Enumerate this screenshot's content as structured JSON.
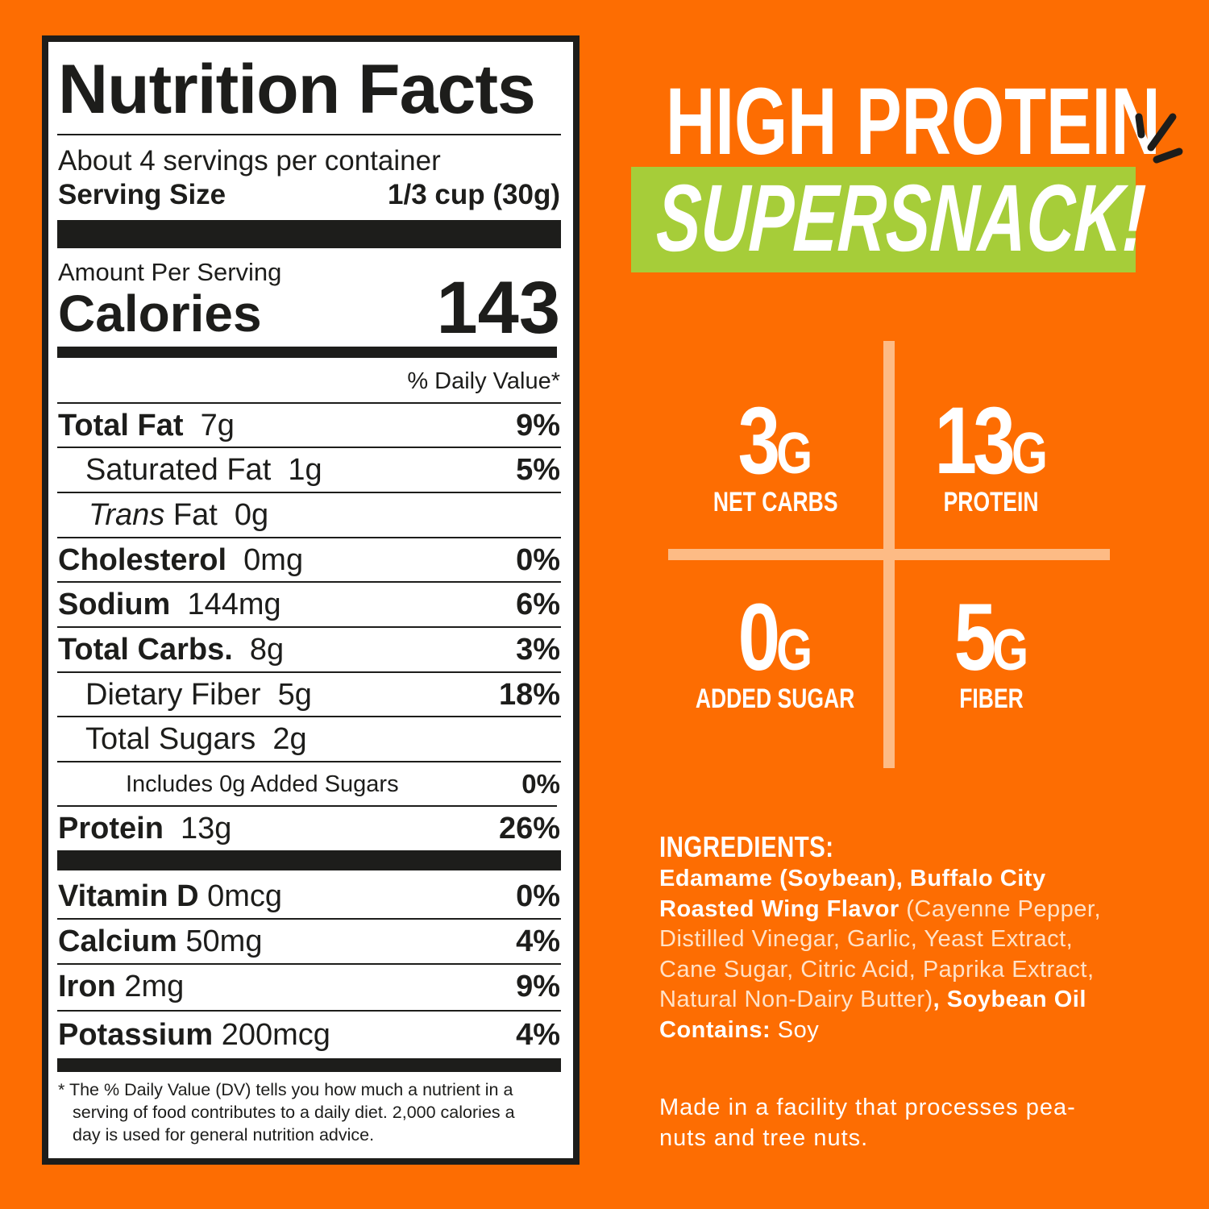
{
  "label": {
    "title": "Nutrition Facts",
    "servings": "About 4 servings per container",
    "serving_size_label": "Serving Size",
    "serving_size_value": "1/3 cup (30g)",
    "amount_per_serving": "Amount Per Serving",
    "calories_label": "Calories",
    "calories_value": "143",
    "daily_value_header": "% Daily Value*",
    "nutrients": [
      {
        "name": "Total Fat",
        "amount": "7g",
        "dv": "9%"
      },
      {
        "name": "Saturated Fat",
        "amount": "1g",
        "dv": "5%"
      },
      {
        "name": "Trans",
        "name_suffix": "Fat",
        "amount": "0g",
        "dv": ""
      },
      {
        "name": "Cholesterol",
        "amount": "0mg",
        "dv": "0%"
      },
      {
        "name": "Sodium",
        "amount": "144mg",
        "dv": "6%"
      },
      {
        "name": "Total Carbs.",
        "amount": "8g",
        "dv": "3%"
      },
      {
        "name": "Dietary Fiber",
        "amount": "5g",
        "dv": "18%"
      },
      {
        "name": "Total Sugars",
        "amount": "2g",
        "dv": ""
      },
      {
        "name": "Includes 0g Added Sugars",
        "amount": "",
        "dv": "0%"
      },
      {
        "name": "Protein",
        "amount": "13g",
        "dv": "26%"
      }
    ],
    "vitamins": [
      {
        "name": "Vitamin D",
        "amount": "0mcg",
        "dv": "0%"
      },
      {
        "name": "Calcium",
        "amount": "50mg",
        "dv": "4%"
      },
      {
        "name": "Iron",
        "amount": "2mg",
        "dv": "9%"
      },
      {
        "name": "Potassium",
        "amount": "200mcg",
        "dv": "4%"
      }
    ],
    "footnote_1": "* The % Daily Value (DV) tells you how much a nutrient in a",
    "footnote_2": "serving of food contributes to a daily diet. 2,000 calories a",
    "footnote_3": "day is used for general nutrition advice."
  },
  "headline": {
    "line1": "HIGH PROTEIN",
    "line2": "SUPERSNACK!"
  },
  "highlights": [
    {
      "value": "3",
      "unit": "G",
      "label": "NET CARBS"
    },
    {
      "value": "13",
      "unit": "G",
      "label": "PROTEIN"
    },
    {
      "value": "0",
      "unit": "G",
      "label": "ADDED SUGAR"
    },
    {
      "value": "5",
      "unit": "G",
      "label": "FIBER"
    }
  ],
  "ingredients": {
    "heading": "INGREDIENTS:",
    "line1": "Edamame (Soybean), Buffalo City",
    "line2_bold": "Roasted Wing Flavor",
    "line2_thin": " (Cayenne Pepper,",
    "line3": "Distilled Vinegar, Garlic, Yeast Extract,",
    "line4": "Cane Sugar, Citric Acid, Paprika Extract,",
    "line5_thin": "Natural Non-Dairy Butter)",
    "line5_bold": ", Soybean Oil",
    "contains_label": "Contains:",
    "contains_value": " Soy",
    "facility_1": "Made in a facility that processes pea-",
    "facility_2": "nuts and tree nuts."
  },
  "colors": {
    "background": "#fd6d02",
    "green": "#a6cd39",
    "divider": "#fdbb85",
    "label_ink": "#1d1d1b"
  }
}
